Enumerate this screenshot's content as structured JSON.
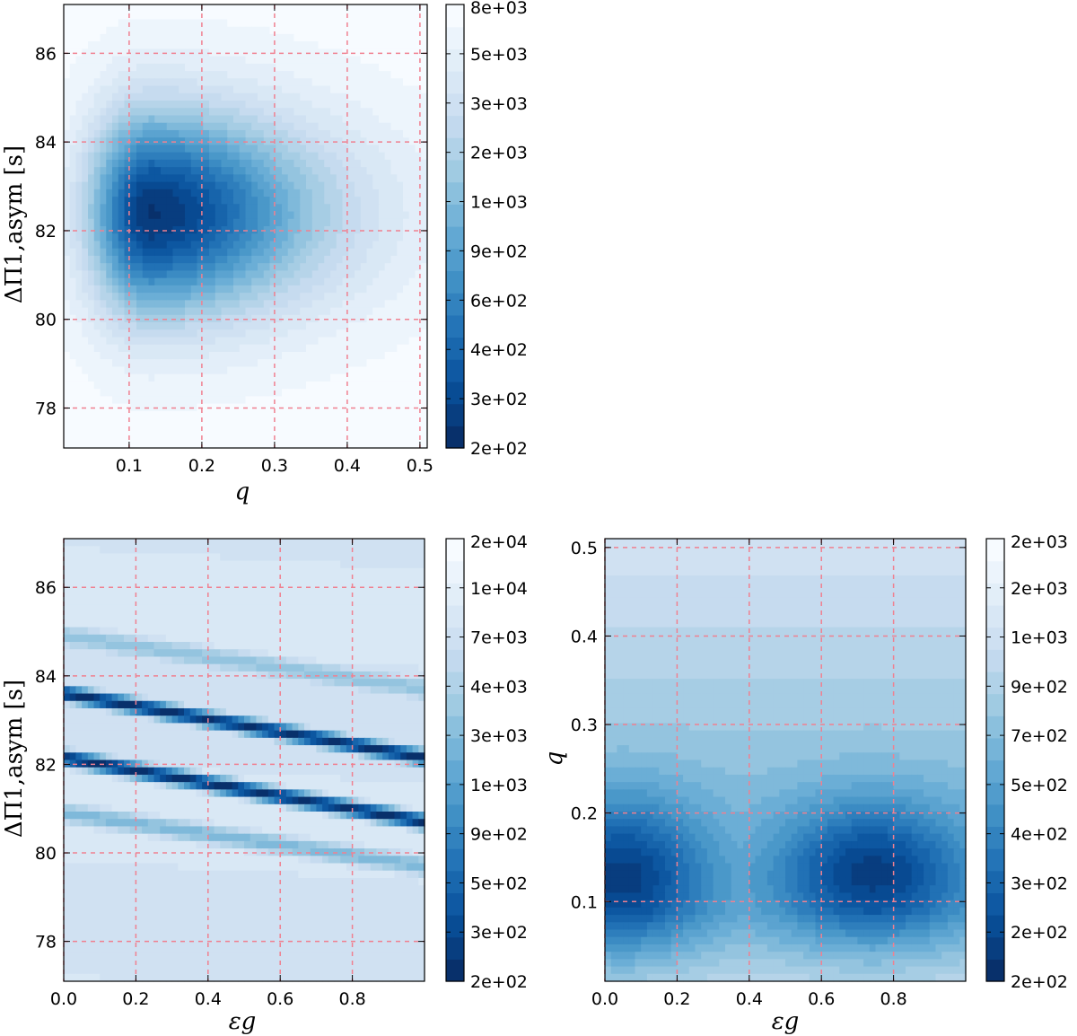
{
  "chart_data": [
    {
      "type": "heatmap",
      "panel": "top-left",
      "xlabel": "q",
      "ylabel": "ΔΠ1,asym [s]",
      "xlim": [
        0.01,
        0.51
      ],
      "ylim": [
        77.1,
        87.1
      ],
      "xticks": [
        {
          "v": 0.1,
          "label": "0.1"
        },
        {
          "v": 0.2,
          "label": "0.2"
        },
        {
          "v": 0.3,
          "label": "0.3"
        },
        {
          "v": 0.4,
          "label": "0.4"
        },
        {
          "v": 0.5,
          "label": "0.5"
        }
      ],
      "yticks": [
        {
          "v": 78,
          "label": "78"
        },
        {
          "v": 80,
          "label": "80"
        },
        {
          "v": 82,
          "label": "82"
        },
        {
          "v": 84,
          "label": "84"
        },
        {
          "v": 86,
          "label": "86"
        }
      ],
      "grid": true,
      "colorbar": {
        "labels": [
          "2e+02",
          "3e+02",
          "4e+02",
          "6e+02",
          "9e+02",
          "1e+03",
          "2e+03",
          "3e+03",
          "5e+03",
          "8e+03"
        ]
      },
      "minima": [
        {
          "x": 0.13,
          "y": 82.4
        }
      ]
    },
    {
      "type": "heatmap",
      "panel": "bottom-left",
      "xlabel": "εg",
      "ylabel": "ΔΠ1,asym [s]",
      "xlim": [
        0.0,
        1.0
      ],
      "ylim": [
        77.1,
        87.1
      ],
      "xticks": [
        {
          "v": 0.0,
          "label": "0.0"
        },
        {
          "v": 0.2,
          "label": "0.2"
        },
        {
          "v": 0.4,
          "label": "0.4"
        },
        {
          "v": 0.6,
          "label": "0.6"
        },
        {
          "v": 0.8,
          "label": "0.8"
        }
      ],
      "yticks": [
        {
          "v": 78,
          "label": "78"
        },
        {
          "v": 80,
          "label": "80"
        },
        {
          "v": 82,
          "label": "82"
        },
        {
          "v": 84,
          "label": "84"
        },
        {
          "v": 86,
          "label": "86"
        }
      ],
      "grid": true,
      "colorbar": {
        "labels": [
          "2e+02",
          "3e+02",
          "5e+02",
          "9e+02",
          "1e+03",
          "3e+03",
          "4e+03",
          "7e+03",
          "1e+04",
          "2e+04"
        ]
      },
      "minima": [
        {
          "x": 0.0,
          "y": 82.15
        },
        {
          "x": 1.0,
          "y": 82.15
        }
      ]
    },
    {
      "type": "heatmap",
      "panel": "bottom-right",
      "xlabel": "εg",
      "ylabel": "q",
      "xlim": [
        0.0,
        1.0
      ],
      "ylim": [
        0.01,
        0.51
      ],
      "xticks": [
        {
          "v": 0.0,
          "label": "0.0"
        },
        {
          "v": 0.2,
          "label": "0.2"
        },
        {
          "v": 0.4,
          "label": "0.4"
        },
        {
          "v": 0.6,
          "label": "0.6"
        },
        {
          "v": 0.8,
          "label": "0.8"
        }
      ],
      "yticks": [
        {
          "v": 0.1,
          "label": "0.1"
        },
        {
          "v": 0.2,
          "label": "0.2"
        },
        {
          "v": 0.3,
          "label": "0.3"
        },
        {
          "v": 0.4,
          "label": "0.4"
        },
        {
          "v": 0.5,
          "label": "0.5"
        }
      ],
      "grid": true,
      "colorbar": {
        "labels": [
          "2e+02",
          "2e+02",
          "3e+02",
          "4e+02",
          "5e+02",
          "7e+02",
          "9e+02",
          "1e+03",
          "2e+03",
          "2e+03"
        ]
      },
      "minima": [
        {
          "x": 0.05,
          "y": 0.13
        },
        {
          "x": 0.75,
          "y": 0.135
        }
      ]
    }
  ]
}
